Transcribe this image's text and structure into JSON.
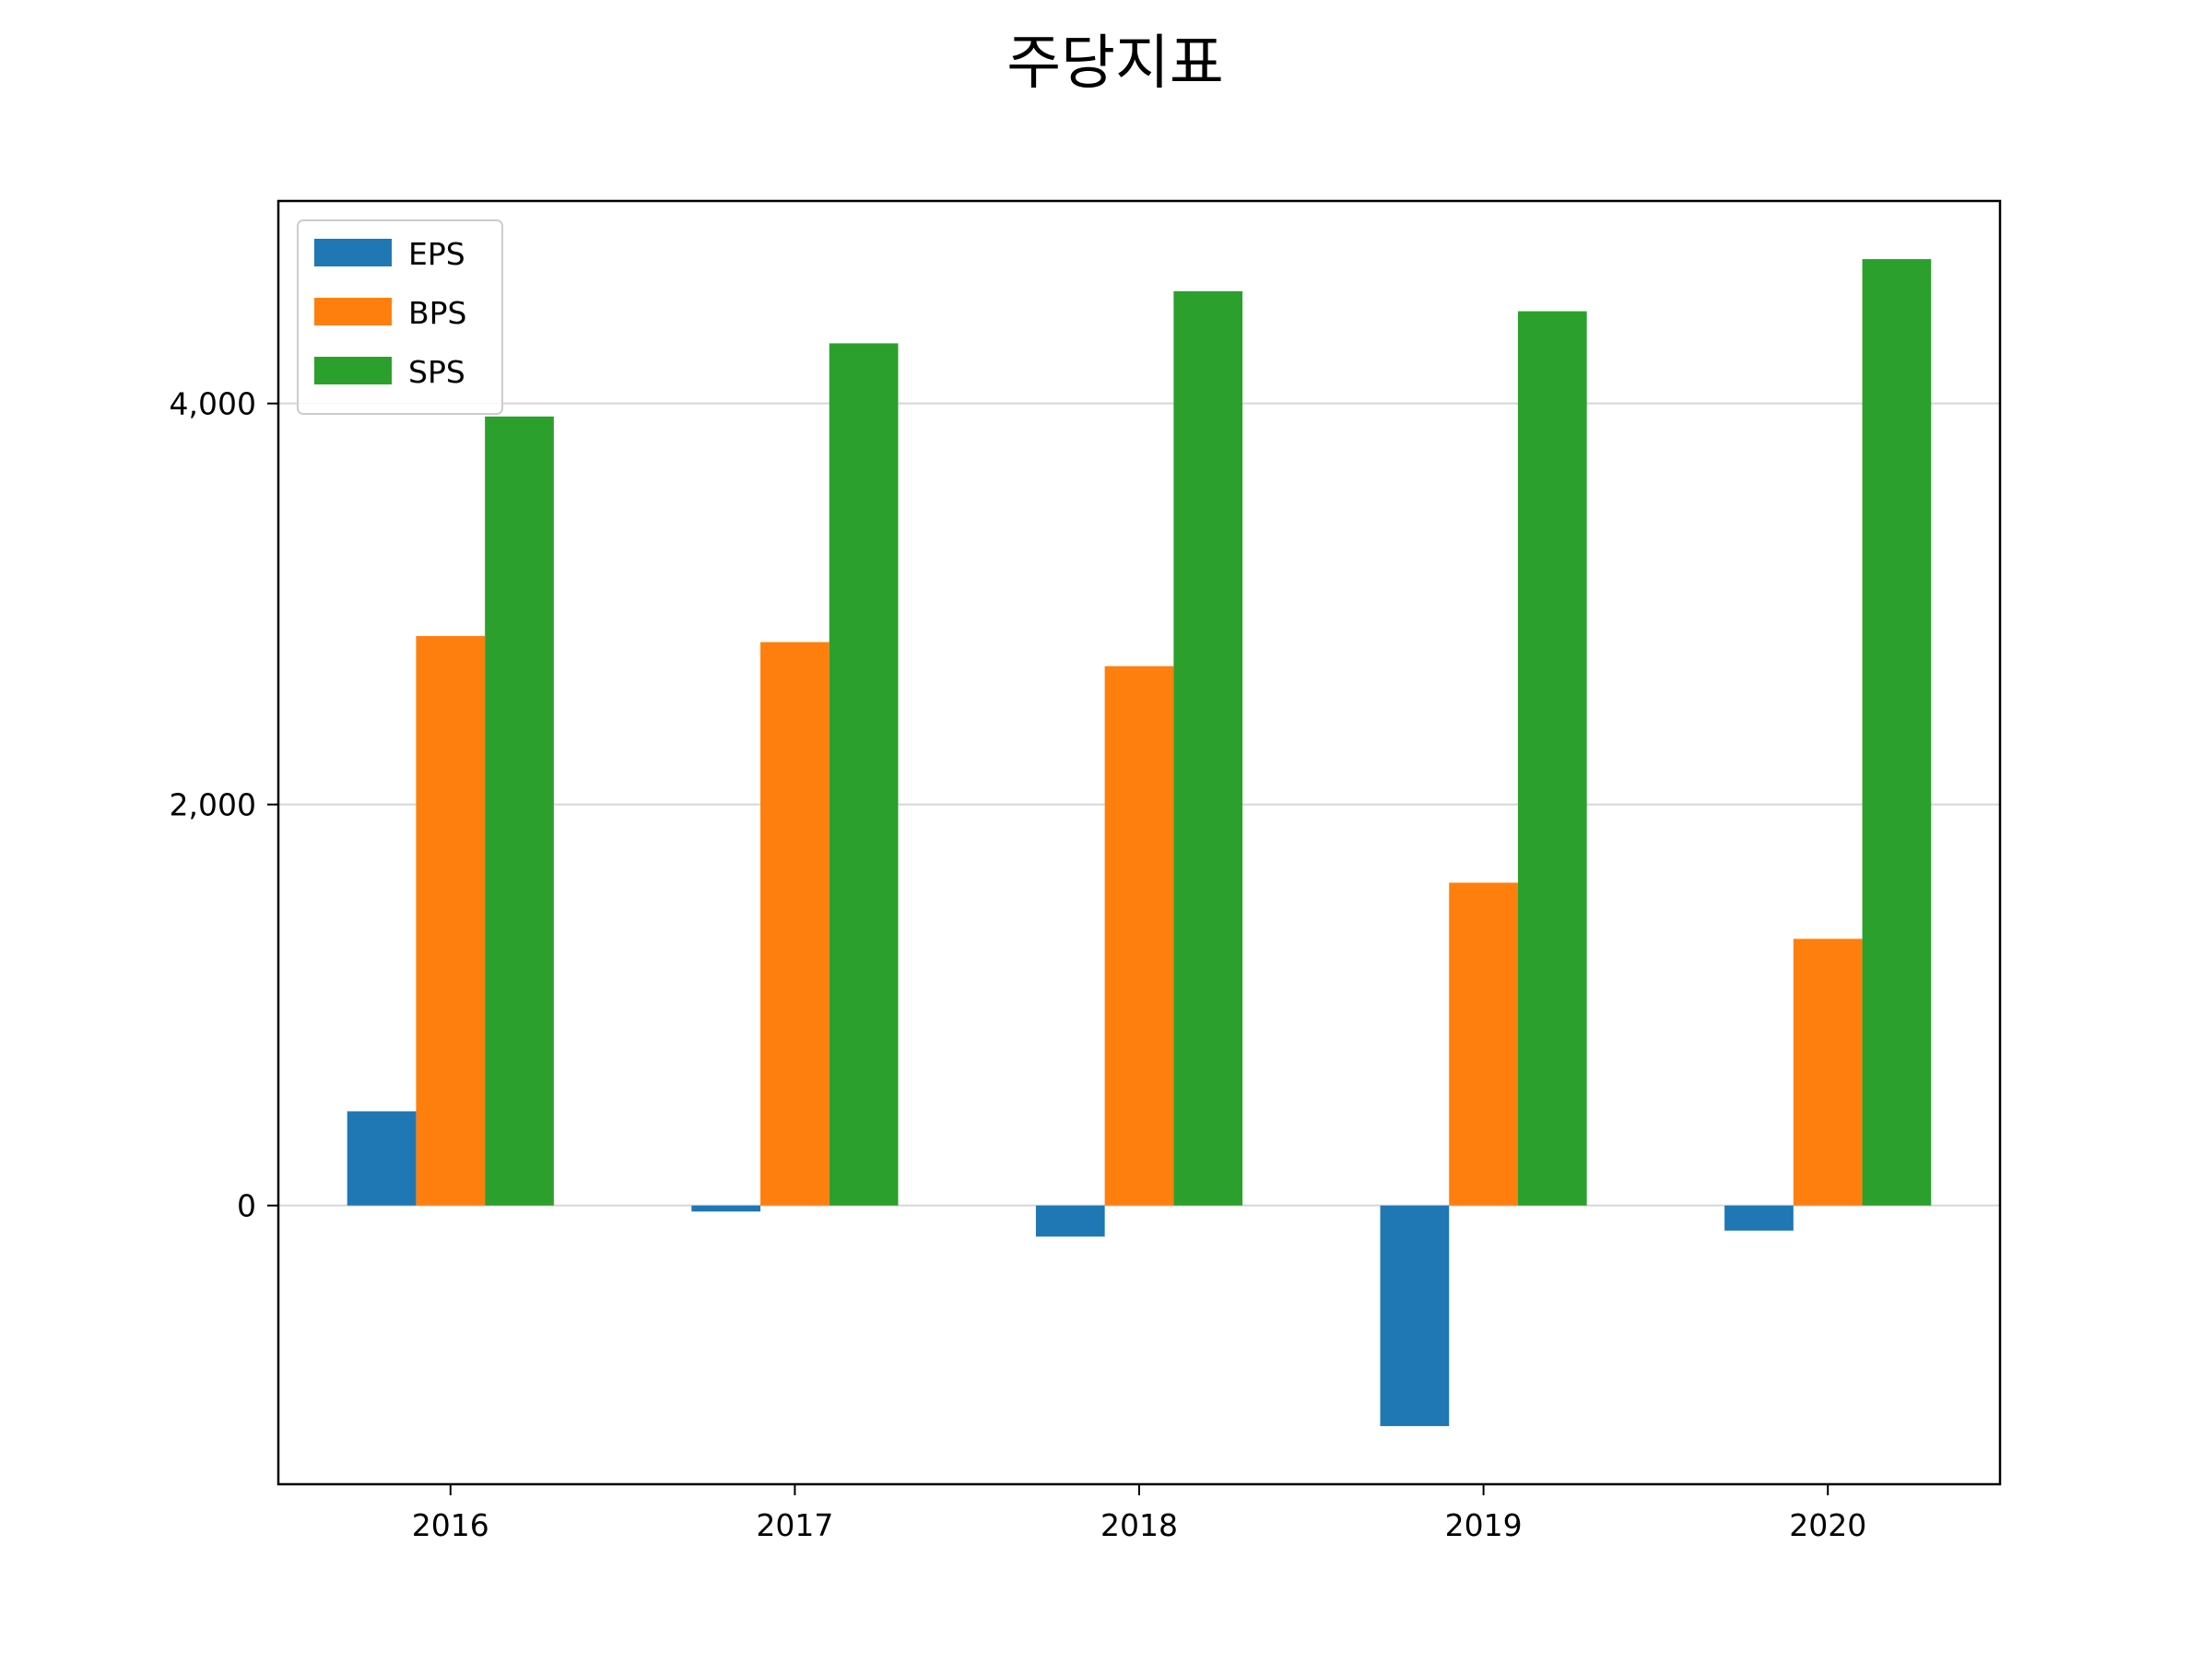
{
  "chart_data": {
    "type": "bar",
    "title": "주당지표",
    "xlabel": "",
    "ylabel": "",
    "categories": [
      "2016",
      "2017",
      "2018",
      "2019",
      "2020"
    ],
    "series": [
      {
        "name": "EPS",
        "color": "#1f77b4",
        "values": [
          470,
          -30,
          -155,
          -1100,
          -125
        ]
      },
      {
        "name": "BPS",
        "color": "#ff7f0e",
        "values": [
          2840,
          2810,
          2690,
          1610,
          1330
        ]
      },
      {
        "name": "SPS",
        "color": "#2ca02c",
        "values": [
          3935,
          4300,
          4560,
          4460,
          4720
        ]
      }
    ],
    "ylim": [
      -1390,
      5010
    ],
    "yticks": [
      0,
      2000,
      4000
    ],
    "ytick_labels": [
      "0",
      "2,000",
      "4,000"
    ],
    "grid": {
      "y": true,
      "x": false
    },
    "legend_position": "top-left"
  }
}
